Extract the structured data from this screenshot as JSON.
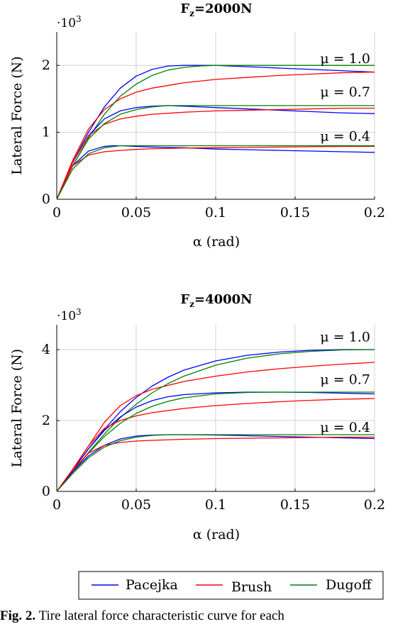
{
  "colors": {
    "pacejka": "#0000ff",
    "brush": "#ff0000",
    "dugoff": "#008000",
    "grid": "#d0d0d0"
  },
  "legend": [
    "Pacejka",
    "Brush",
    "Dugoff"
  ],
  "caption": {
    "prefix": "Fig. 2.",
    "text": "Tire lateral force characteristic curve for each"
  },
  "chart_data": [
    {
      "type": "line",
      "title": "Fz=2000N",
      "title_main": "F",
      "title_sub": "z",
      "title_rest": "=2000N",
      "xlabel_symbol": "α",
      "xlabel_unit": "(rad)",
      "ylabel": "Lateral Force (N)",
      "y_multiplier": "·10",
      "y_multiplier_exp": "3",
      "xlim": [
        0,
        0.2
      ],
      "ylim": [
        0,
        2.5
      ],
      "xticks": [
        0,
        0.05,
        0.1,
        0.15,
        0.2
      ],
      "xtick_labels": [
        "0",
        "0.05",
        "0.1",
        "0.15",
        "0.2"
      ],
      "yticks": [
        0,
        1,
        2
      ],
      "ytick_labels": [
        "0",
        "1",
        "2"
      ],
      "grid": true,
      "annotations": [
        {
          "text": "μ = 1.0",
          "x": 0.178,
          "y": 2.1
        },
        {
          "text": "μ = 0.7",
          "x": 0.178,
          "y": 1.6
        },
        {
          "text": "μ = 0.4",
          "x": 0.178,
          "y": 0.94
        }
      ],
      "groups": [
        {
          "mu": "1.0",
          "series": [
            {
              "name": "Pacejka",
              "x": [
                0,
                0.01,
                0.02,
                0.03,
                0.04,
                0.05,
                0.06,
                0.07,
                0.08,
                0.09,
                0.1,
                0.12,
                0.14,
                0.16,
                0.18,
                0.2
              ],
              "y": [
                0,
                0.55,
                1.0,
                1.38,
                1.66,
                1.84,
                1.94,
                1.99,
                2.0,
                2.0,
                2.0,
                1.98,
                1.96,
                1.94,
                1.92,
                1.9
              ]
            },
            {
              "name": "Brush",
              "x": [
                0,
                0.01,
                0.02,
                0.03,
                0.04,
                0.05,
                0.06,
                0.08,
                0.1,
                0.12,
                0.14,
                0.16,
                0.18,
                0.2
              ],
              "y": [
                0,
                0.58,
                1.05,
                1.34,
                1.5,
                1.6,
                1.66,
                1.74,
                1.79,
                1.82,
                1.85,
                1.87,
                1.89,
                1.9
              ]
            },
            {
              "name": "Dugoff",
              "x": [
                0,
                0.01,
                0.02,
                0.03,
                0.04,
                0.05,
                0.06,
                0.07,
                0.08,
                0.09,
                0.1,
                0.12,
                0.15,
                0.2
              ],
              "y": [
                0,
                0.5,
                0.92,
                1.27,
                1.54,
                1.72,
                1.85,
                1.93,
                1.97,
                1.99,
                2.0,
                2.0,
                2.0,
                2.0
              ]
            }
          ]
        },
        {
          "mu": "0.7",
          "series": [
            {
              "name": "Pacejka",
              "x": [
                0,
                0.01,
                0.02,
                0.03,
                0.04,
                0.05,
                0.06,
                0.07,
                0.08,
                0.1,
                0.12,
                0.14,
                0.16,
                0.18,
                0.2
              ],
              "y": [
                0,
                0.55,
                0.95,
                1.2,
                1.32,
                1.37,
                1.39,
                1.4,
                1.39,
                1.37,
                1.35,
                1.33,
                1.31,
                1.29,
                1.28
              ]
            },
            {
              "name": "Brush",
              "x": [
                0,
                0.01,
                0.02,
                0.03,
                0.04,
                0.05,
                0.06,
                0.08,
                0.1,
                0.12,
                0.14,
                0.16,
                0.18,
                0.2
              ],
              "y": [
                0,
                0.55,
                0.95,
                1.12,
                1.2,
                1.24,
                1.27,
                1.3,
                1.32,
                1.33,
                1.34,
                1.35,
                1.36,
                1.36
              ]
            },
            {
              "name": "Dugoff",
              "x": [
                0,
                0.01,
                0.02,
                0.03,
                0.04,
                0.05,
                0.06,
                0.07,
                0.08,
                0.1,
                0.15,
                0.2
              ],
              "y": [
                0,
                0.5,
                0.9,
                1.13,
                1.27,
                1.34,
                1.38,
                1.4,
                1.4,
                1.4,
                1.4,
                1.4
              ]
            }
          ]
        },
        {
          "mu": "0.4",
          "series": [
            {
              "name": "Pacejka",
              "x": [
                0,
                0.01,
                0.02,
                0.03,
                0.035,
                0.04,
                0.05,
                0.06,
                0.08,
                0.1,
                0.12,
                0.14,
                0.16,
                0.18,
                0.2
              ],
              "y": [
                0,
                0.5,
                0.72,
                0.79,
                0.8,
                0.8,
                0.79,
                0.78,
                0.77,
                0.75,
                0.74,
                0.73,
                0.72,
                0.71,
                0.7
              ]
            },
            {
              "name": "Brush",
              "x": [
                0,
                0.01,
                0.02,
                0.03,
                0.04,
                0.05,
                0.06,
                0.08,
                0.1,
                0.12,
                0.14,
                0.16,
                0.18,
                0.2
              ],
              "y": [
                0,
                0.5,
                0.66,
                0.71,
                0.73,
                0.745,
                0.755,
                0.765,
                0.77,
                0.775,
                0.78,
                0.785,
                0.79,
                0.79
              ]
            },
            {
              "name": "Dugoff",
              "x": [
                0,
                0.01,
                0.02,
                0.03,
                0.04,
                0.05,
                0.07,
                0.1,
                0.15,
                0.2
              ],
              "y": [
                0,
                0.45,
                0.68,
                0.77,
                0.8,
                0.8,
                0.8,
                0.8,
                0.8,
                0.8
              ]
            }
          ]
        }
      ]
    },
    {
      "type": "line",
      "title": "Fz=4000N",
      "title_main": "F",
      "title_sub": "z",
      "title_rest": "=4000N",
      "xlabel_symbol": "α",
      "xlabel_unit": "(rad)",
      "ylabel": "Lateral Force (N)",
      "y_multiplier": "·10",
      "y_multiplier_exp": "3",
      "xlim": [
        0,
        0.2
      ],
      "ylim": [
        0,
        4.7
      ],
      "xticks": [
        0,
        0.05,
        0.1,
        0.15,
        0.2
      ],
      "xtick_labels": [
        "0",
        "0.05",
        "0.1",
        "0.15",
        "0.2"
      ],
      "yticks": [
        0,
        2,
        4
      ],
      "ytick_labels": [
        "0",
        "2",
        "4"
      ],
      "grid": true,
      "annotations": [
        {
          "text": "μ = 1.0",
          "x": 0.178,
          "y": 4.35
        },
        {
          "text": "μ = 0.7",
          "x": 0.178,
          "y": 3.15
        },
        {
          "text": "μ = 0.4",
          "x": 0.178,
          "y": 1.8
        }
      ],
      "groups": [
        {
          "mu": "1.0",
          "series": [
            {
              "name": "Pacejka",
              "x": [
                0,
                0.01,
                0.02,
                0.03,
                0.04,
                0.05,
                0.06,
                0.07,
                0.08,
                0.1,
                0.12,
                0.14,
                0.16,
                0.18,
                0.2
              ],
              "y": [
                0,
                0.6,
                1.2,
                1.75,
                2.25,
                2.65,
                2.97,
                3.22,
                3.42,
                3.68,
                3.84,
                3.93,
                3.98,
                4.0,
                4.0
              ]
            },
            {
              "name": "Brush",
              "x": [
                0,
                0.01,
                0.02,
                0.03,
                0.04,
                0.05,
                0.06,
                0.08,
                0.1,
                0.12,
                0.14,
                0.16,
                0.18,
                0.2
              ],
              "y": [
                0,
                0.62,
                1.28,
                1.95,
                2.42,
                2.7,
                2.88,
                3.1,
                3.25,
                3.37,
                3.46,
                3.53,
                3.59,
                3.64
              ]
            },
            {
              "name": "Dugoff",
              "x": [
                0,
                0.01,
                0.02,
                0.03,
                0.04,
                0.05,
                0.06,
                0.07,
                0.08,
                0.1,
                0.12,
                0.14,
                0.16,
                0.18,
                0.2
              ],
              "y": [
                0,
                0.55,
                1.1,
                1.62,
                2.08,
                2.46,
                2.78,
                3.04,
                3.25,
                3.56,
                3.76,
                3.88,
                3.95,
                3.99,
                4.0
              ]
            }
          ]
        },
        {
          "mu": "0.7",
          "series": [
            {
              "name": "Pacejka",
              "x": [
                0,
                0.01,
                0.02,
                0.03,
                0.04,
                0.05,
                0.06,
                0.07,
                0.08,
                0.1,
                0.12,
                0.14,
                0.16,
                0.18,
                0.2
              ],
              "y": [
                0,
                0.6,
                1.2,
                1.72,
                2.1,
                2.38,
                2.56,
                2.67,
                2.73,
                2.78,
                2.8,
                2.8,
                2.79,
                2.77,
                2.75
              ]
            },
            {
              "name": "Brush",
              "x": [
                0,
                0.01,
                0.02,
                0.03,
                0.04,
                0.05,
                0.06,
                0.08,
                0.1,
                0.12,
                0.14,
                0.16,
                0.18,
                0.2
              ],
              "y": [
                0,
                0.62,
                1.28,
                1.78,
                2.0,
                2.13,
                2.22,
                2.34,
                2.42,
                2.48,
                2.53,
                2.57,
                2.6,
                2.62
              ]
            },
            {
              "name": "Dugoff",
              "x": [
                0,
                0.01,
                0.02,
                0.03,
                0.04,
                0.05,
                0.06,
                0.07,
                0.08,
                0.1,
                0.12,
                0.14,
                0.16,
                0.2
              ],
              "y": [
                0,
                0.55,
                1.08,
                1.55,
                1.92,
                2.2,
                2.4,
                2.54,
                2.64,
                2.75,
                2.79,
                2.8,
                2.8,
                2.8
              ]
            }
          ]
        },
        {
          "mu": "0.4",
          "series": [
            {
              "name": "Pacejka",
              "x": [
                0,
                0.01,
                0.02,
                0.03,
                0.04,
                0.05,
                0.06,
                0.07,
                0.08,
                0.1,
                0.12,
                0.14,
                0.16,
                0.18,
                0.2
              ],
              "y": [
                0,
                0.55,
                1.0,
                1.3,
                1.48,
                1.56,
                1.59,
                1.6,
                1.6,
                1.59,
                1.57,
                1.55,
                1.53,
                1.51,
                1.49
              ]
            },
            {
              "name": "Brush",
              "x": [
                0,
                0.01,
                0.02,
                0.03,
                0.04,
                0.05,
                0.06,
                0.08,
                0.1,
                0.12,
                0.14,
                0.16,
                0.18,
                0.2
              ],
              "y": [
                0,
                0.6,
                1.08,
                1.3,
                1.38,
                1.42,
                1.44,
                1.47,
                1.49,
                1.5,
                1.51,
                1.52,
                1.53,
                1.53
              ]
            },
            {
              "name": "Dugoff",
              "x": [
                0,
                0.01,
                0.02,
                0.03,
                0.04,
                0.05,
                0.06,
                0.07,
                0.08,
                0.1,
                0.15,
                0.2
              ],
              "y": [
                0,
                0.5,
                0.95,
                1.25,
                1.43,
                1.53,
                1.58,
                1.6,
                1.6,
                1.6,
                1.6,
                1.6
              ]
            }
          ]
        }
      ]
    }
  ]
}
